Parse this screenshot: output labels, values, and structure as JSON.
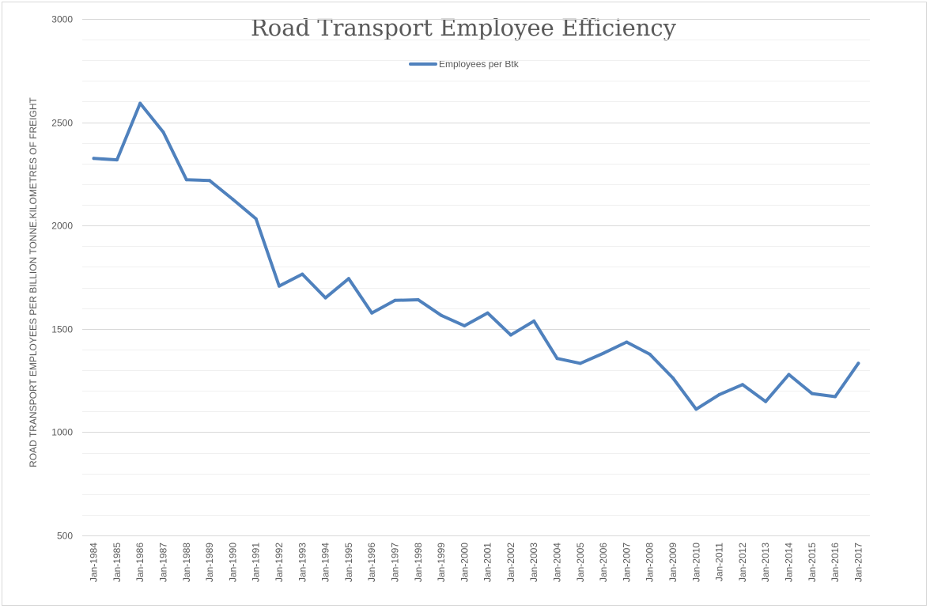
{
  "chart_data": {
    "type": "line",
    "title": "Road Transport Employee Efficiency",
    "xlabel": "",
    "ylabel": "ROAD TRANSPORT EMPLOYEES PER BILLION TONNE.KILOMETRES OF FREIGHT",
    "ylim": [
      500,
      3000
    ],
    "yticks": [
      500,
      1000,
      1500,
      2000,
      2500,
      3000
    ],
    "grid": true,
    "legend_position": "top",
    "categories": [
      "Jan-1984",
      "Jan-1985",
      "Jan-1986",
      "Jan-1987",
      "Jan-1988",
      "Jan-1989",
      "Jan-1990",
      "Jan-1991",
      "Jan-1992",
      "Jan-1993",
      "Jan-1994",
      "Jan-1995",
      "Jan-1996",
      "Jan-1997",
      "Jan-1998",
      "Jan-1999",
      "Jan-2000",
      "Jan-2001",
      "Jan-2002",
      "Jan-2003",
      "Jan-2004",
      "Jan-2005",
      "Jan-2006",
      "Jan-2007",
      "Jan-2008",
      "Jan-2009",
      "Jan-2010",
      "Jan-2011",
      "Jan-2012",
      "Jan-2013",
      "Jan-2014",
      "Jan-2015",
      "Jan-2016",
      "Jan-2017"
    ],
    "series": [
      {
        "name": "Employees per Btk",
        "color": "#4f81bd",
        "values": [
          2325,
          2318,
          2592,
          2452,
          2222,
          2218,
          2127,
          2033,
          1707,
          1765,
          1650,
          1743,
          1577,
          1638,
          1641,
          1565,
          1515,
          1577,
          1470,
          1538,
          1357,
          1333,
          1382,
          1436,
          1377,
          1262,
          1111,
          1182,
          1230,
          1148,
          1279,
          1187,
          1172,
          1333
        ]
      }
    ]
  }
}
